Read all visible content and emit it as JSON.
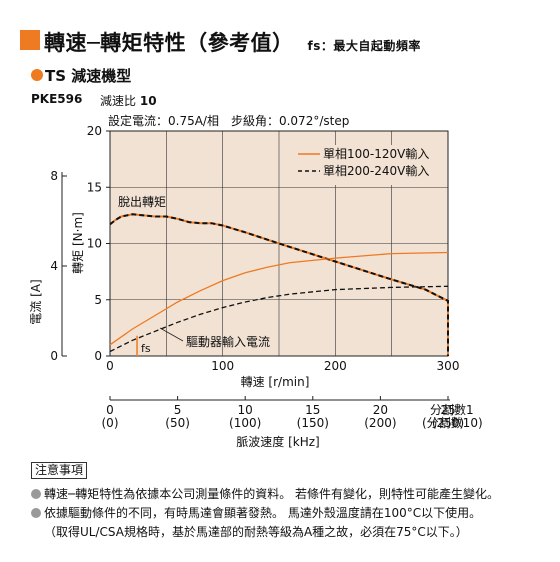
{
  "header": {
    "title": "轉速─轉矩特性（參考值）",
    "subtitle": "fs：最大自起動頻率"
  },
  "section": {
    "title": "TS 減速機型"
  },
  "model": {
    "name": "PKE596",
    "ratio_label": "減速比",
    "ratio_value": "10"
  },
  "conditions": "設定電流：0.75A/相　步級角：0.072°/step",
  "chart_data": {
    "type": "line",
    "ylabel": "轉矩 [N·m]",
    "ylabel2": "電流 [A]",
    "xlabel": "轉速 [r/min]",
    "xlabel2": "脈波速度 [kHz]",
    "xlim": [
      0,
      300
    ],
    "ylim": [
      0,
      20
    ],
    "y2lim": [
      0,
      10
    ],
    "xticks": [
      "0",
      "100",
      "200",
      "300"
    ],
    "yticks": [
      "0",
      "5",
      "10",
      "15",
      "20"
    ],
    "y2ticks": [
      "0",
      "4",
      "8"
    ],
    "x2_ticks": [
      "0",
      "5",
      "10",
      "15",
      "20",
      "25"
    ],
    "x2_ticks_alt": [
      "(0)",
      "(50)",
      "(100)",
      "(150)",
      "(200)",
      "(250)"
    ],
    "x2_label_right": "分割數1",
    "x2_label_right_alt": "(分割數10)",
    "grid": true,
    "legend_position": "top-right",
    "colors": {
      "orange": "#ee7a22",
      "black": "#111111"
    },
    "series": [
      {
        "name": "單相100-120V輸入",
        "style": "solid-orange",
        "kind": "torque",
        "x": [
          0,
          5,
          10,
          20,
          30,
          40,
          50,
          60,
          70,
          80,
          90,
          100,
          110,
          120,
          150,
          200,
          250,
          280,
          290,
          300,
          300
        ],
        "y": [
          11.7,
          12.1,
          12.4,
          12.6,
          12.5,
          12.4,
          12.4,
          12.2,
          11.9,
          11.8,
          11.8,
          11.6,
          11.3,
          11.0,
          10.0,
          8.4,
          6.8,
          5.9,
          5.4,
          4.9,
          0
        ]
      },
      {
        "name": "單相200-240V輸入",
        "style": "dashed-black",
        "kind": "torque",
        "x": [
          0,
          5,
          10,
          20,
          30,
          40,
          50,
          60,
          70,
          80,
          90,
          100,
          110,
          120,
          150,
          200,
          250,
          280,
          290,
          300,
          300
        ],
        "y": [
          11.7,
          12.1,
          12.4,
          12.6,
          12.5,
          12.4,
          12.4,
          12.2,
          11.9,
          11.8,
          11.8,
          11.6,
          11.3,
          11.0,
          10.0,
          8.4,
          6.8,
          5.9,
          5.4,
          4.9,
          0
        ]
      },
      {
        "name": "",
        "style": "solid-orange",
        "kind": "current",
        "x": [
          0,
          20,
          40,
          60,
          80,
          100,
          120,
          140,
          160,
          200,
          250,
          300
        ],
        "y": [
          0.5,
          1.2,
          1.8,
          2.4,
          2.9,
          3.35,
          3.7,
          3.95,
          4.15,
          4.35,
          4.55,
          4.6
        ]
      },
      {
        "name": "",
        "style": "dashed-black",
        "kind": "current",
        "x": [
          0,
          20,
          40,
          60,
          80,
          100,
          120,
          140,
          160,
          200,
          250,
          300
        ],
        "y": [
          0.2,
          0.7,
          1.1,
          1.5,
          1.85,
          2.15,
          2.4,
          2.6,
          2.75,
          2.95,
          3.05,
          3.1
        ]
      }
    ],
    "annotations": {
      "pullout": "脫出轉矩",
      "driver_current": "驅動器輸入電流",
      "fs_label": "fs",
      "fs_x": 24
    }
  },
  "notes": {
    "title": "注意事項",
    "items": [
      "轉速─轉矩特性為依據本公司測量條件的資料。 若條件有變化，則特性可能產生變化。",
      "依據驅動條件的不同，有時馬達會顯著發熱。 馬達外殼溫度請在100°C以下使用。",
      "（取得UL/CSA規格時，基於馬達部的耐熱等級為A種之故，必須在75°C以下。）"
    ]
  }
}
